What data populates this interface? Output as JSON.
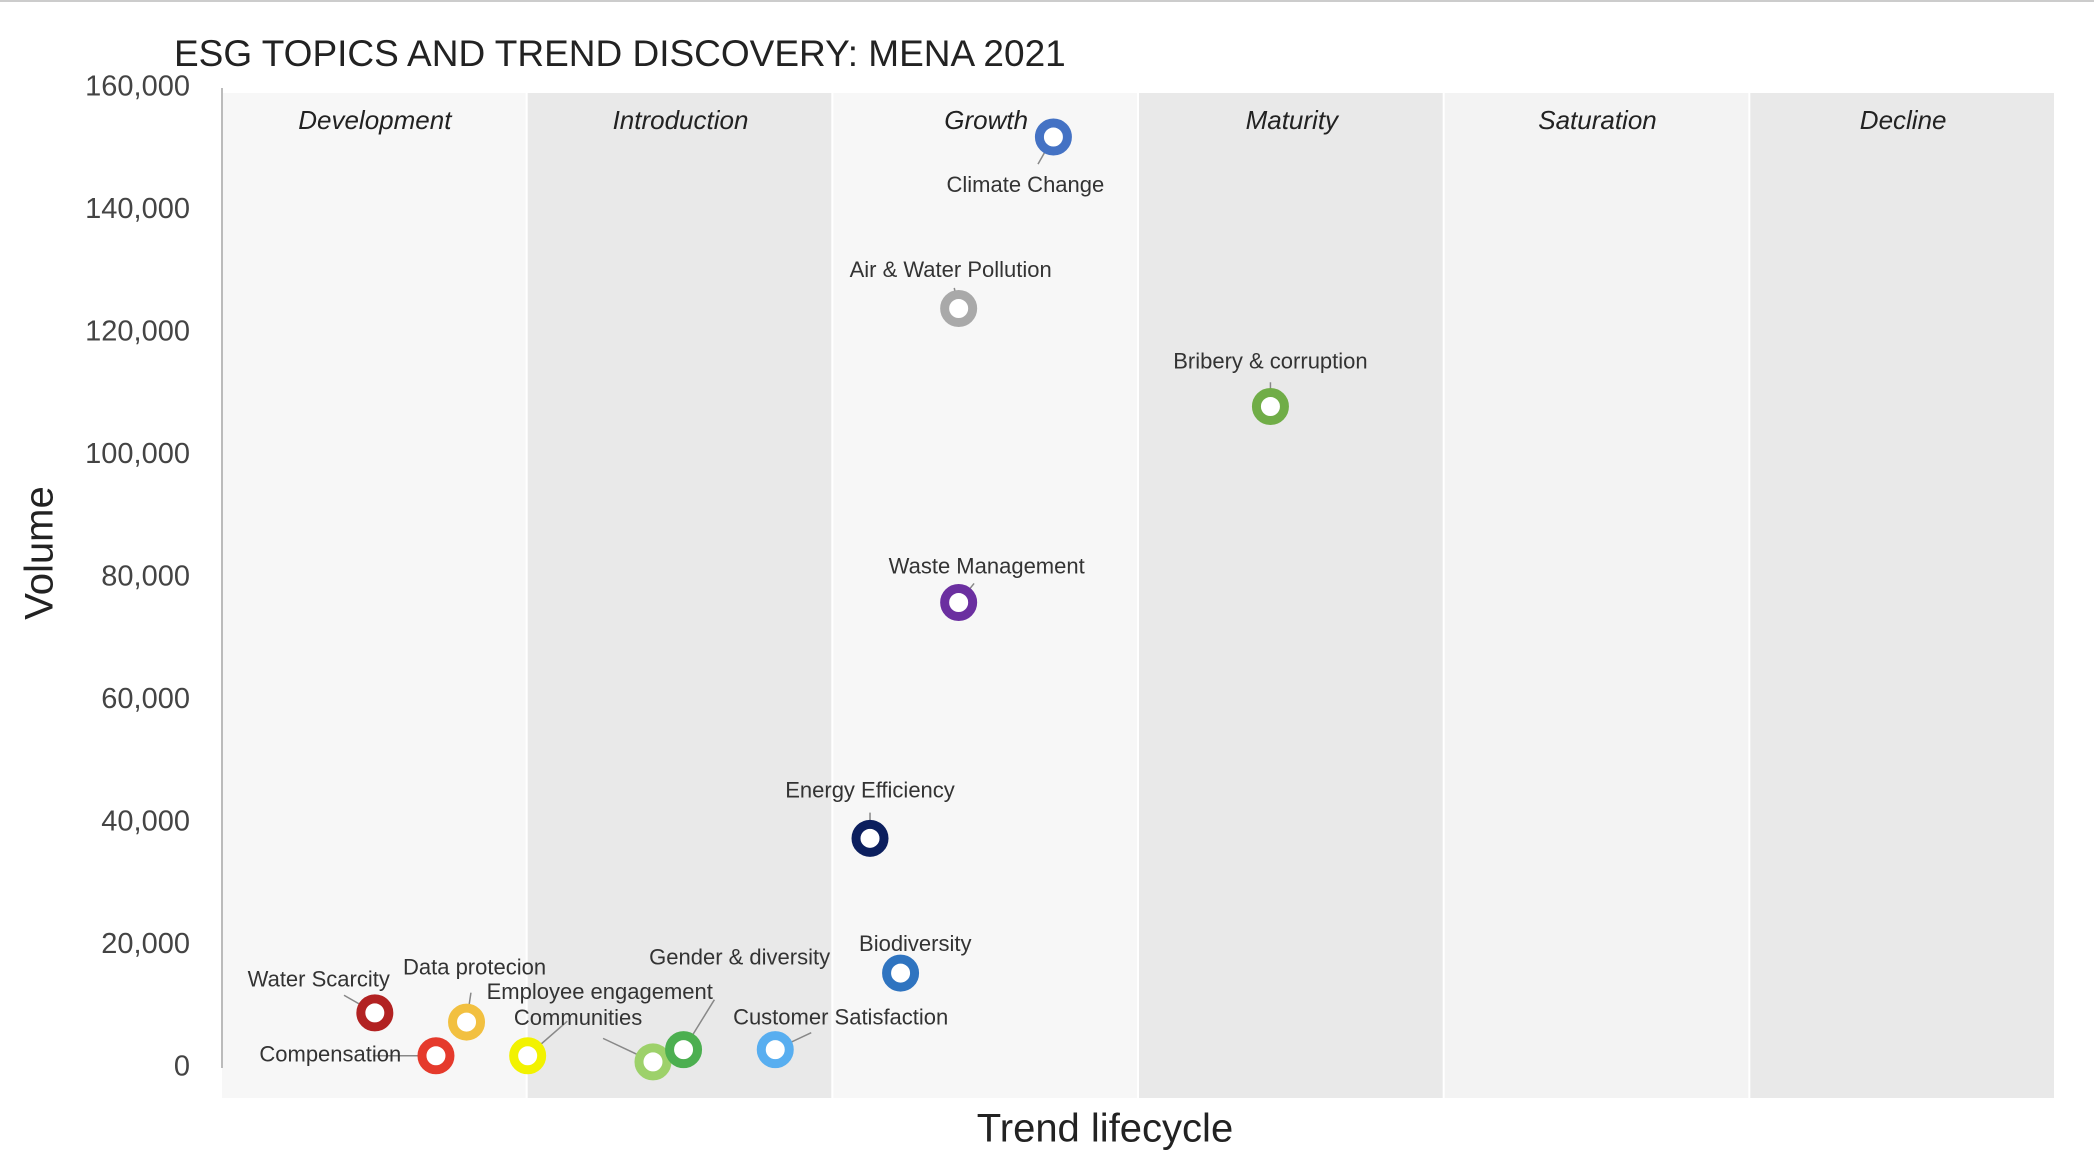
{
  "chart_data": {
    "type": "scatter",
    "title": "ESG TOPICS AND TREND DISCOVERY: MENA 2021",
    "x_label": "Trend lifecycle",
    "y_label": "Volume",
    "bands": [
      "Development",
      "Introduction",
      "Growth",
      "Maturity",
      "Saturation",
      "Decline"
    ],
    "band_colors": [
      "#f7f7f7",
      "#e9e9e9",
      "#f7f7f7",
      "#e9e9e9",
      "#f3f3f3",
      "#e9e9e9"
    ],
    "xlim": [
      0,
      6
    ],
    "ylim": [
      0,
      160000
    ],
    "yticks": [
      0,
      {
        "value": 20000,
        "label": "20,000"
      },
      {
        "value": 40000,
        "label": "40,000"
      },
      {
        "value": 60000,
        "label": "60,000"
      },
      {
        "value": 80000,
        "label": "80,000"
      },
      {
        "value": 100000,
        "label": "100,000"
      },
      {
        "value": 120000,
        "label": "120,000"
      },
      {
        "value": 140000,
        "label": "140,000"
      },
      {
        "value": 160000,
        "label": "160,000"
      }
    ],
    "grid": false,
    "series": [
      {
        "name": "Water Scarcity",
        "color": "#b22222",
        "x": [
          0.5
        ],
        "values": [
          9000
        ]
      },
      {
        "name": "Compensation",
        "color": "#e53a2c",
        "x": [
          0.7
        ],
        "values": [
          2000
        ]
      },
      {
        "name": "Data protecion",
        "color": "#f2c040",
        "x": [
          0.8
        ],
        "values": [
          7500
        ]
      },
      {
        "name": "Employee engagement",
        "color": "#f2f200",
        "x": [
          1.0
        ],
        "values": [
          2000
        ]
      },
      {
        "name": "Communities",
        "color": "#9dd16a",
        "x": [
          1.41
        ],
        "values": [
          1000
        ]
      },
      {
        "name": "Gender & diversity",
        "color": "#4caf50",
        "x": [
          1.51
        ],
        "values": [
          3000
        ]
      },
      {
        "name": "Customer Satisfaction",
        "color": "#58aef0",
        "x": [
          1.81
        ],
        "values": [
          3000
        ]
      },
      {
        "name": "Energy Efficiency",
        "color": "#0c1f5e",
        "x": [
          2.12
        ],
        "values": [
          37500
        ]
      },
      {
        "name": "Biodiversity",
        "color": "#2f74c0",
        "x": [
          2.22
        ],
        "values": [
          15500
        ]
      },
      {
        "name": "Waste Management",
        "color": "#6b2fa0",
        "x": [
          2.41
        ],
        "values": [
          76000
        ]
      },
      {
        "name": "Air & Water Pollution",
        "color": "#a9a9a9",
        "x": [
          2.41
        ],
        "values": [
          124000
        ]
      },
      {
        "name": "Climate Change",
        "color": "#4472c4",
        "x": [
          2.72
        ],
        "values": [
          152000
        ]
      },
      {
        "name": "Bribery & corruption",
        "color": "#70ad47",
        "x": [
          3.43
        ],
        "values": [
          108000
        ]
      }
    ]
  }
}
